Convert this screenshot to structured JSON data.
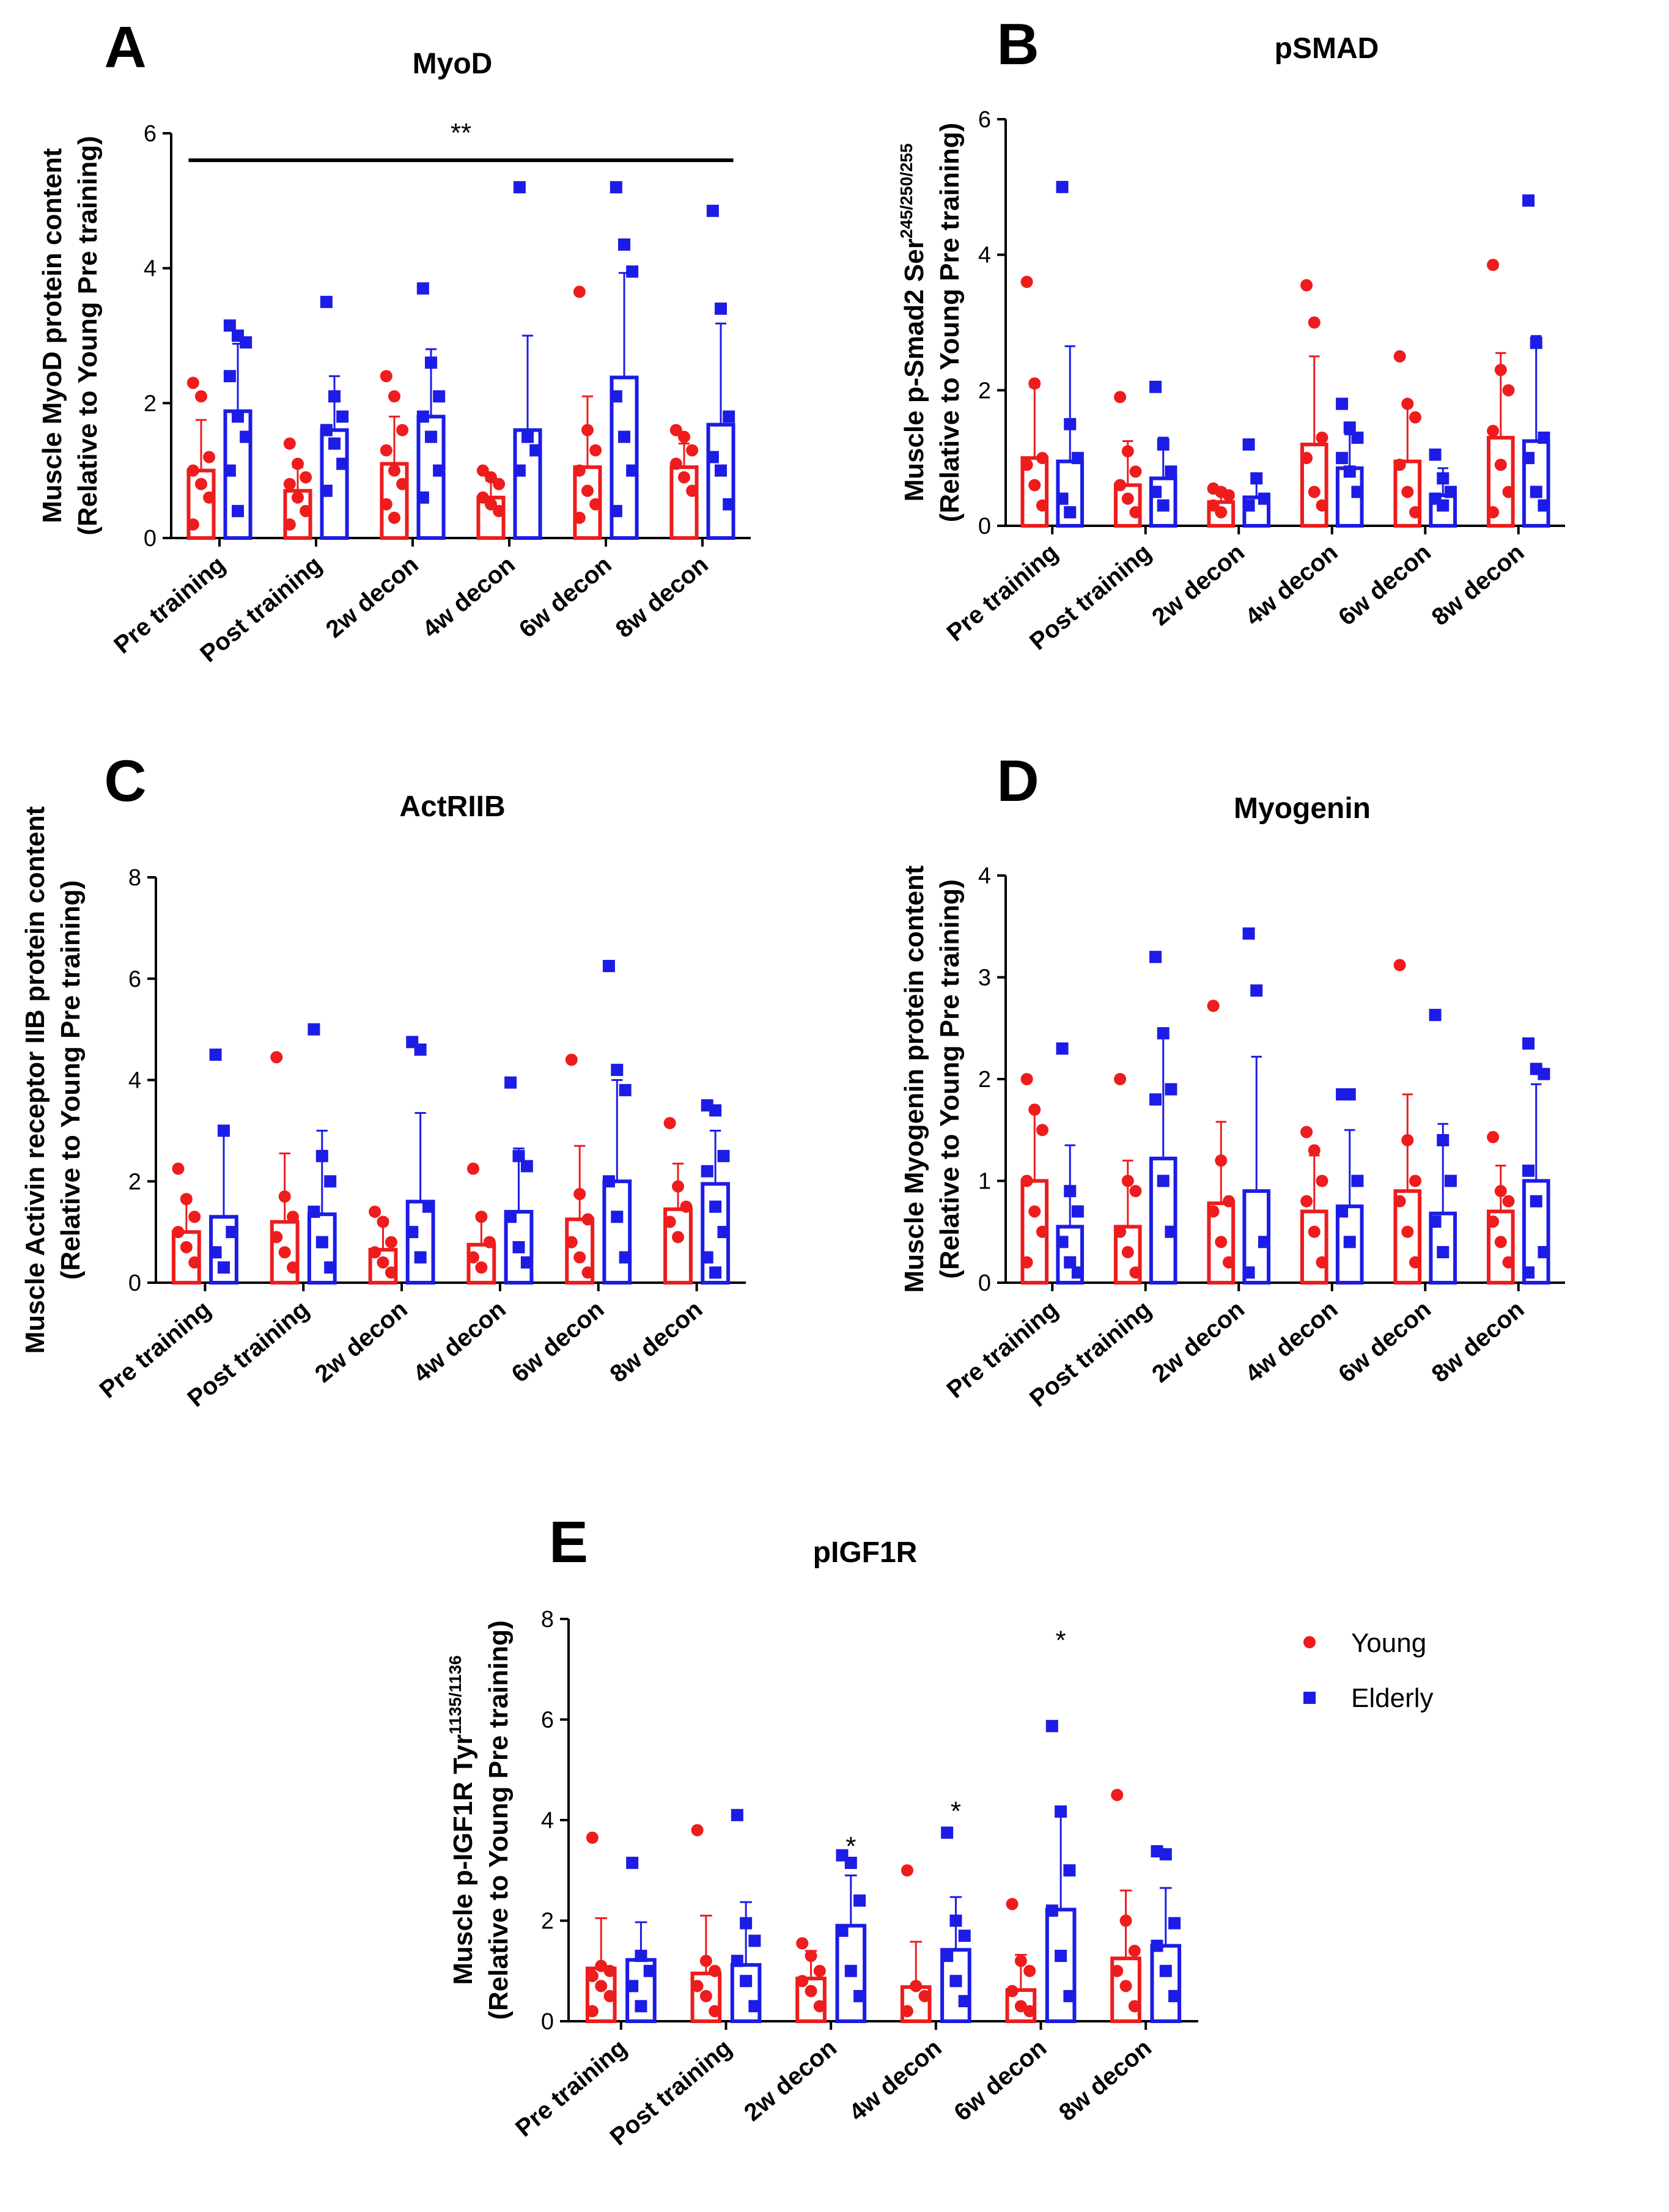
{
  "chart_data": [
    {
      "panel": "A",
      "type": "bar",
      "title": "MyoD",
      "ylabel_lines": [
        "Muscle MyoD protein content",
        "(Relative to Young Pre training)"
      ],
      "ylabel_sup": "",
      "ylim": [
        0,
        6
      ],
      "yticks": [
        0,
        2,
        4,
        6
      ],
      "categories": [
        "Pre training",
        "Post training",
        "2w decon",
        "4w decon",
        "6w decon",
        "8w decon"
      ],
      "series": [
        {
          "name": "Young",
          "color": "#ee1c1c",
          "values": [
            1.0,
            0.7,
            1.1,
            0.6,
            1.05,
            1.05
          ],
          "sd": [
            0.75,
            0.35,
            0.7,
            0.25,
            1.05,
            0.35
          ],
          "points": [
            [
              2.3,
              2.1,
              1.2,
              1.0,
              0.8,
              0.6,
              0.2
            ],
            [
              1.4,
              1.1,
              0.9,
              0.8,
              0.6,
              0.4,
              0.2
            ],
            [
              2.4,
              2.1,
              1.6,
              1.3,
              1.0,
              0.8,
              0.5,
              0.3
            ],
            [
              1.0,
              0.9,
              0.8,
              0.6,
              0.5,
              0.4
            ],
            [
              3.65,
              1.6,
              1.3,
              1.0,
              0.7,
              0.5,
              0.3
            ],
            [
              1.6,
              1.5,
              1.3,
              1.1,
              0.9,
              0.7
            ]
          ]
        },
        {
          "name": "Elderly",
          "color": "#1c1ce6",
          "values": [
            1.88,
            1.6,
            1.8,
            1.6,
            2.38,
            1.68
          ],
          "sd": [
            1.0,
            0.8,
            1.0,
            1.4,
            1.55,
            1.5
          ],
          "points": [
            [
              3.15,
              3.0,
              2.9,
              2.4,
              1.8,
              1.5,
              1.0,
              0.4
            ],
            [
              3.5,
              2.1,
              1.8,
              1.6,
              1.4,
              1.1,
              0.7
            ],
            [
              3.7,
              2.6,
              2.1,
              1.8,
              1.5,
              1.0,
              0.6
            ],
            [
              5.2,
              1.5,
              1.3,
              1.0
            ],
            [
              5.2,
              4.35,
              3.95,
              2.1,
              1.5,
              1.0,
              0.4
            ],
            [
              4.85,
              3.4,
              1.8,
              1.2,
              1.0,
              0.5
            ]
          ]
        }
      ],
      "annotations": [
        {
          "text": "**",
          "type": "bracket",
          "from": 0,
          "to": 5,
          "y": 5.6
        }
      ]
    },
    {
      "panel": "B",
      "type": "bar",
      "title": "pSMAD",
      "ylabel_lines": [
        "Muscle p-Smad2 Ser",
        "(Relative to Young Pre training)"
      ],
      "ylabel_sup": "245/250/255",
      "ylim": [
        0,
        6
      ],
      "yticks": [
        0,
        2,
        4,
        6
      ],
      "categories": [
        "Pre training",
        "Post training",
        "2w decon",
        "4w decon",
        "6w decon",
        "8w decon"
      ],
      "series": [
        {
          "name": "Young",
          "color": "#ee1c1c",
          "values": [
            1.0,
            0.6,
            0.35,
            1.2,
            0.95,
            1.3
          ],
          "sd": [
            1.05,
            0.65,
            0.2,
            1.3,
            0.85,
            1.25
          ],
          "points": [
            [
              3.6,
              2.1,
              1.0,
              0.9,
              0.6,
              0.3
            ],
            [
              1.9,
              1.1,
              0.8,
              0.6,
              0.4,
              0.2
            ],
            [
              0.55,
              0.5,
              0.45,
              0.3,
              0.2
            ],
            [
              3.55,
              3.0,
              1.3,
              1.0,
              0.5,
              0.3
            ],
            [
              2.5,
              1.8,
              1.6,
              0.9,
              0.5,
              0.2
            ],
            [
              3.85,
              2.3,
              2.0,
              1.4,
              0.9,
              0.5,
              0.2
            ]
          ]
        },
        {
          "name": "Elderly",
          "color": "#1c1ce6",
          "values": [
            0.95,
            0.7,
            0.42,
            0.85,
            0.45,
            1.25
          ],
          "sd": [
            1.7,
            0.6,
            0.3,
            0.5,
            0.4,
            1.55
          ],
          "points": [
            [
              5.0,
              1.5,
              1.0,
              0.4,
              0.2
            ],
            [
              2.05,
              1.2,
              0.8,
              0.5,
              0.3
            ],
            [
              1.2,
              0.7,
              0.4,
              0.3
            ],
            [
              1.8,
              1.45,
              1.3,
              1.0,
              0.8,
              0.5
            ],
            [
              1.05,
              0.7,
              0.5,
              0.4,
              0.3
            ],
            [
              4.8,
              2.7,
              1.3,
              1.0,
              0.5,
              0.3
            ]
          ]
        }
      ],
      "annotations": []
    },
    {
      "panel": "C",
      "type": "bar",
      "title": "ActRIIB",
      "ylabel_lines": [
        "Muscle Activin receptor IIB protein content",
        "(Relative to Young Pre training)"
      ],
      "ylabel_sup": "",
      "ylim": [
        0,
        8
      ],
      "yticks": [
        0,
        2,
        4,
        6,
        8
      ],
      "categories": [
        "Pre training",
        "Post training",
        "2w decon",
        "4w decon",
        "6w decon",
        "8w decon"
      ],
      "series": [
        {
          "name": "Young",
          "color": "#ee1c1c",
          "values": [
            1.0,
            1.2,
            0.65,
            0.75,
            1.25,
            1.45
          ],
          "sd": [
            0.7,
            1.35,
            0.6,
            0.6,
            1.45,
            0.9
          ],
          "points": [
            [
              2.25,
              1.65,
              1.3,
              1.0,
              0.7,
              0.4
            ],
            [
              4.45,
              1.7,
              1.3,
              0.9,
              0.6,
              0.3
            ],
            [
              1.4,
              1.2,
              0.8,
              0.6,
              0.4,
              0.2
            ],
            [
              2.25,
              1.3,
              0.8,
              0.5,
              0.3
            ],
            [
              4.4,
              1.75,
              1.25,
              0.8,
              0.5,
              0.2
            ],
            [
              3.15,
              1.9,
              1.5,
              1.2,
              0.9
            ]
          ]
        },
        {
          "name": "Elderly",
          "color": "#1c1ce6",
          "values": [
            1.3,
            1.35,
            1.6,
            1.4,
            2.0,
            1.95
          ],
          "sd": [
            1.6,
            1.65,
            1.75,
            1.25,
            2.0,
            1.05
          ],
          "points": [
            [
              4.5,
              3.0,
              1.0,
              0.6,
              0.3
            ],
            [
              5.0,
              2.5,
              2.0,
              1.4,
              0.8,
              0.3
            ],
            [
              4.75,
              4.6,
              1.5,
              1.0,
              0.5
            ],
            [
              3.95,
              2.5,
              2.3,
              1.3,
              0.7,
              0.4
            ],
            [
              6.25,
              4.2,
              3.8,
              2.0,
              1.3,
              0.5
            ],
            [
              3.5,
              3.4,
              2.5,
              2.2,
              1.5,
              1.0,
              0.5,
              0.2
            ]
          ]
        }
      ],
      "annotations": []
    },
    {
      "panel": "D",
      "type": "bar",
      "title": "Myogenin",
      "ylabel_lines": [
        "Muscle Myogenin protein content",
        "(Relative to Young Pre training)"
      ],
      "ylabel_sup": "",
      "ylim": [
        0,
        4
      ],
      "yticks": [
        0,
        1,
        2,
        3,
        4
      ],
      "categories": [
        "Pre training",
        "Post training",
        "2w decon",
        "4w decon",
        "6w decon",
        "8w decon"
      ],
      "series": [
        {
          "name": "Young",
          "color": "#ee1c1c",
          "values": [
            1.0,
            0.55,
            0.78,
            0.7,
            0.9,
            0.7
          ],
          "sd": [
            0.72,
            0.65,
            0.8,
            0.55,
            0.95,
            0.45
          ],
          "points": [
            [
              2.0,
              1.7,
              1.5,
              1.0,
              0.7,
              0.5,
              0.2
            ],
            [
              2.0,
              1.0,
              0.9,
              0.5,
              0.3,
              0.1
            ],
            [
              2.72,
              1.2,
              0.8,
              0.7,
              0.4,
              0.2
            ],
            [
              1.48,
              1.3,
              1.0,
              0.8,
              0.5,
              0.2
            ],
            [
              3.12,
              1.4,
              1.0,
              0.8,
              0.5,
              0.2
            ],
            [
              1.43,
              0.9,
              0.8,
              0.6,
              0.4,
              0.2
            ]
          ]
        },
        {
          "name": "Elderly",
          "color": "#1c1ce6",
          "values": [
            0.55,
            1.22,
            0.9,
            0.75,
            0.68,
            1.0
          ],
          "sd": [
            0.8,
            1.25,
            1.32,
            0.75,
            0.88,
            0.95
          ],
          "points": [
            [
              2.3,
              0.9,
              0.7,
              0.4,
              0.2,
              0.1
            ],
            [
              3.2,
              2.45,
              1.9,
              1.8,
              1.0,
              0.5
            ],
            [
              3.43,
              2.87,
              0.4,
              0.1
            ],
            [
              1.85,
              1.85,
              1.0,
              0.7,
              0.4
            ],
            [
              2.63,
              1.4,
              1.0,
              0.6,
              0.3
            ],
            [
              2.35,
              2.1,
              2.05,
              1.1,
              0.8,
              0.3,
              0.1
            ]
          ]
        }
      ],
      "annotations": []
    },
    {
      "panel": "E",
      "type": "bar",
      "title": "pIGF1R",
      "ylabel_lines": [
        "Muscle p-IGF1R Tyr",
        "(Relative to Young Pre training)"
      ],
      "ylabel_sup": "1135/1136",
      "ylim": [
        0,
        8
      ],
      "yticks": [
        0,
        2,
        4,
        6,
        8
      ],
      "categories": [
        "Pre training",
        "Post training",
        "2w decon",
        "4w decon",
        "6w decon",
        "8w decon"
      ],
      "series": [
        {
          "name": "Young",
          "color": "#ee1c1c",
          "values": [
            1.05,
            0.95,
            0.85,
            0.68,
            0.62,
            1.25
          ],
          "sd": [
            1.0,
            1.15,
            0.55,
            0.9,
            0.7,
            1.35
          ],
          "points": [
            [
              3.65,
              1.1,
              1.0,
              0.9,
              0.7,
              0.5,
              0.2
            ],
            [
              3.8,
              1.2,
              1.0,
              0.7,
              0.5,
              0.2
            ],
            [
              1.55,
              1.3,
              1.0,
              0.8,
              0.6,
              0.3
            ],
            [
              3.0,
              0.7,
              0.5,
              0.2
            ],
            [
              2.33,
              1.2,
              1.0,
              0.6,
              0.3,
              0.2
            ],
            [
              4.5,
              2.0,
              1.4,
              1.0,
              0.7,
              0.3
            ]
          ]
        },
        {
          "name": "Elderly",
          "color": "#1c1ce6",
          "values": [
            1.22,
            1.12,
            1.9,
            1.42,
            2.22,
            1.5
          ],
          "sd": [
            0.75,
            1.25,
            1.0,
            1.05,
            1.85,
            1.15
          ],
          "points": [
            [
              3.15,
              1.3,
              1.0,
              0.7,
              0.3
            ],
            [
              4.1,
              1.95,
              1.6,
              1.2,
              0.8,
              0.3
            ],
            [
              3.3,
              3.15,
              2.4,
              1.8,
              1.0,
              0.5
            ],
            [
              3.75,
              2.0,
              1.7,
              1.3,
              0.8,
              0.4
            ],
            [
              5.87,
              4.17,
              3.0,
              2.2,
              1.3,
              0.5
            ],
            [
              3.38,
              3.32,
              1.95,
              1.5,
              1.0,
              0.5
            ]
          ]
        }
      ],
      "annotations": [
        {
          "text": "*",
          "type": "star",
          "category": 2,
          "series": 1,
          "y": 3.3
        },
        {
          "text": "*",
          "type": "star",
          "category": 3,
          "series": 1,
          "y": 4.0
        },
        {
          "text": "*",
          "type": "star",
          "category": 4,
          "series": 1,
          "y": 7.4
        }
      ]
    }
  ],
  "legend": {
    "placement": "right of panel E",
    "entries": [
      {
        "label": "Young",
        "color": "#ee1c1c",
        "marker": "circle"
      },
      {
        "label": "Elderly",
        "color": "#1c1ce6",
        "marker": "square"
      }
    ]
  }
}
